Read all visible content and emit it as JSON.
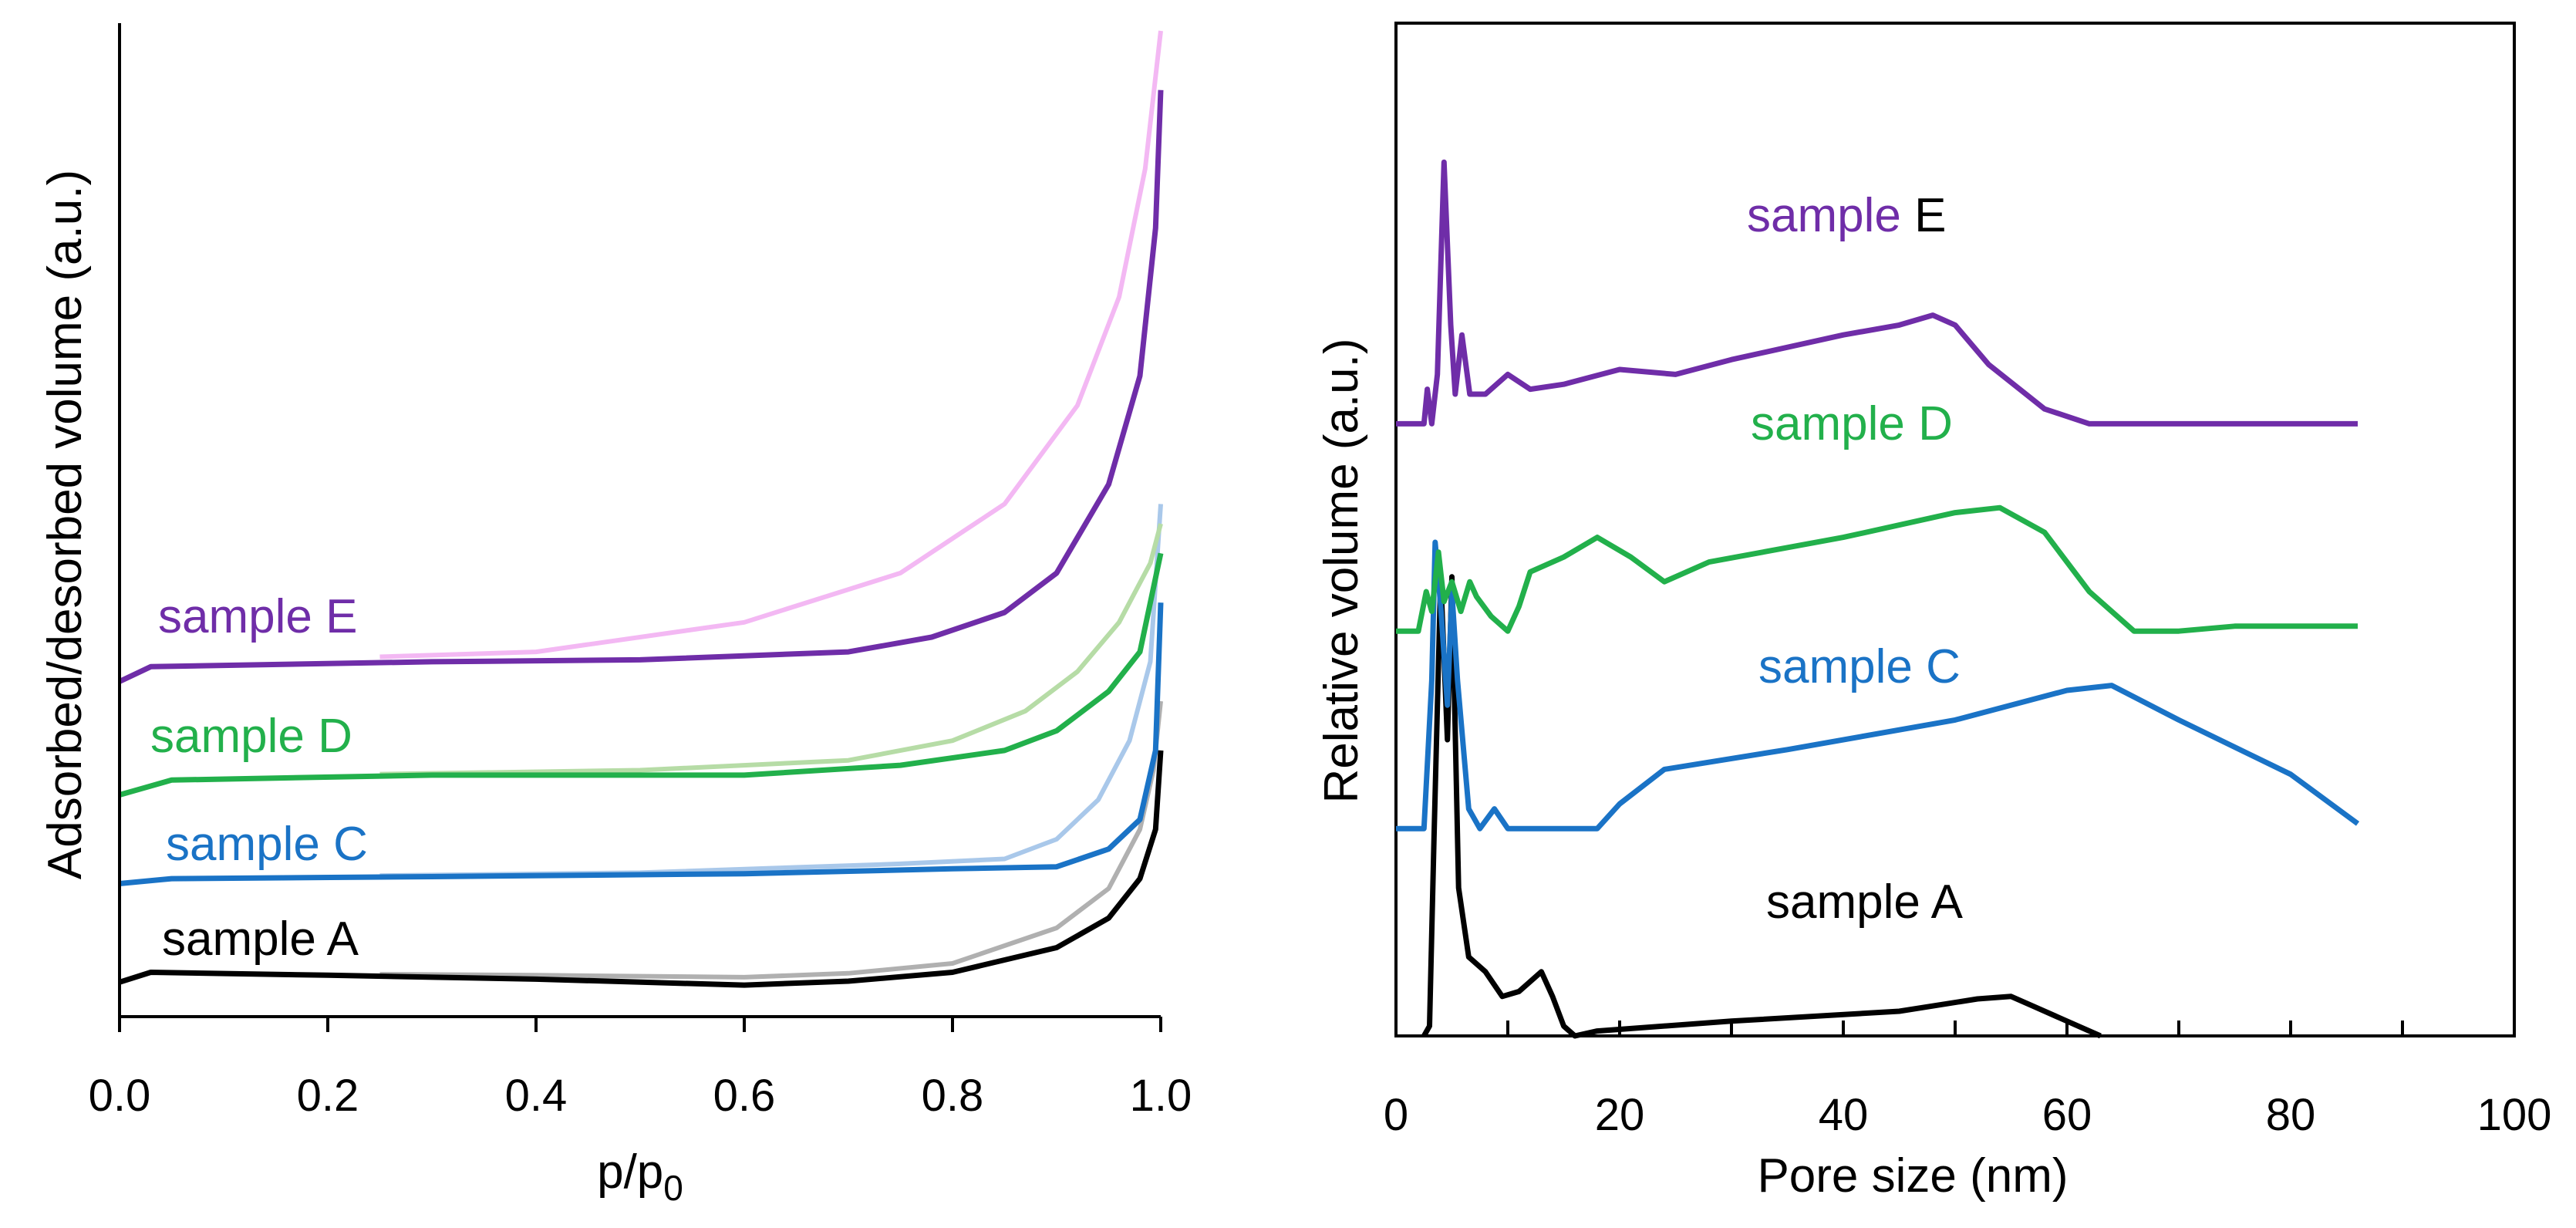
{
  "chart_data": [
    {
      "type": "line",
      "xlabel": "p/p",
      "xlabel_sub": "0",
      "ylabel": "Adsorbed/desorbed volume (a.u.)",
      "xlim": [
        0.0,
        1.0
      ],
      "xticks": [
        "0.0",
        "0.2",
        "0.4",
        "0.6",
        "0.8",
        "1.0"
      ],
      "yticks": [],
      "grid": false,
      "series": [
        {
          "name": "sample A",
          "color": "#000000",
          "desorption_color": "#b0b0b0",
          "baseline": 0.035,
          "adsorption": [
            [
              0.0,
              0.035
            ],
            [
              0.03,
              0.045
            ],
            [
              0.2,
              0.042
            ],
            [
              0.4,
              0.038
            ],
            [
              0.6,
              0.032
            ],
            [
              0.7,
              0.036
            ],
            [
              0.8,
              0.045
            ],
            [
              0.9,
              0.07
            ],
            [
              0.95,
              0.1
            ],
            [
              0.98,
              0.14
            ],
            [
              0.995,
              0.19
            ],
            [
              1.0,
              0.27
            ]
          ],
          "desorption": [
            [
              0.25,
              0.043
            ],
            [
              0.4,
              0.042
            ],
            [
              0.6,
              0.04
            ],
            [
              0.7,
              0.044
            ],
            [
              0.8,
              0.054
            ],
            [
              0.9,
              0.09
            ],
            [
              0.95,
              0.13
            ],
            [
              0.98,
              0.19
            ],
            [
              0.993,
              0.25
            ],
            [
              1.0,
              0.32
            ]
          ]
        },
        {
          "name": "sample C",
          "color": "#1a73c6",
          "desorption_color": "#a9c8ea",
          "baseline": 0.135,
          "adsorption": [
            [
              0.0,
              0.135
            ],
            [
              0.05,
              0.14
            ],
            [
              0.3,
              0.142
            ],
            [
              0.6,
              0.145
            ],
            [
              0.8,
              0.15
            ],
            [
              0.9,
              0.152
            ],
            [
              0.95,
              0.17
            ],
            [
              0.98,
              0.2
            ],
            [
              0.995,
              0.27
            ],
            [
              1.0,
              0.42
            ]
          ],
          "desorption": [
            [
              0.25,
              0.143
            ],
            [
              0.5,
              0.146
            ],
            [
              0.75,
              0.155
            ],
            [
              0.85,
              0.16
            ],
            [
              0.9,
              0.18
            ],
            [
              0.94,
              0.22
            ],
            [
              0.97,
              0.28
            ],
            [
              0.99,
              0.36
            ],
            [
              1.0,
              0.52
            ]
          ]
        },
        {
          "name": "sample D",
          "color": "#22b04b",
          "desorption_color": "#b6dca6",
          "baseline": 0.225,
          "adsorption": [
            [
              0.0,
              0.225
            ],
            [
              0.05,
              0.24
            ],
            [
              0.3,
              0.245
            ],
            [
              0.6,
              0.245
            ],
            [
              0.75,
              0.255
            ],
            [
              0.85,
              0.27
            ],
            [
              0.9,
              0.29
            ],
            [
              0.95,
              0.33
            ],
            [
              0.98,
              0.37
            ],
            [
              1.0,
              0.47
            ]
          ],
          "desorption": [
            [
              0.25,
              0.246
            ],
            [
              0.5,
              0.25
            ],
            [
              0.7,
              0.26
            ],
            [
              0.8,
              0.28
            ],
            [
              0.87,
              0.31
            ],
            [
              0.92,
              0.35
            ],
            [
              0.96,
              0.4
            ],
            [
              0.99,
              0.46
            ],
            [
              1.0,
              0.5
            ]
          ]
        },
        {
          "name": "sample E",
          "color": "#6f2da8",
          "desorption_color": "#f3b8f3",
          "baseline": 0.34,
          "adsorption": [
            [
              0.0,
              0.34
            ],
            [
              0.03,
              0.355
            ],
            [
              0.3,
              0.36
            ],
            [
              0.5,
              0.362
            ],
            [
              0.7,
              0.37
            ],
            [
              0.78,
              0.385
            ],
            [
              0.85,
              0.41
            ],
            [
              0.9,
              0.45
            ],
            [
              0.95,
              0.54
            ],
            [
              0.98,
              0.65
            ],
            [
              0.995,
              0.8
            ],
            [
              1.0,
              0.94
            ]
          ],
          "desorption": [
            [
              0.25,
              0.365
            ],
            [
              0.4,
              0.37
            ],
            [
              0.6,
              0.4
            ],
            [
              0.75,
              0.45
            ],
            [
              0.85,
              0.52
            ],
            [
              0.92,
              0.62
            ],
            [
              0.96,
              0.73
            ],
            [
              0.985,
              0.86
            ],
            [
              1.0,
              1.0
            ]
          ]
        }
      ],
      "labels": [
        {
          "series": "sample E",
          "text": "sample E",
          "color": "#6f2da8"
        },
        {
          "series": "sample D",
          "text": "sample D",
          "color": "#22b04b"
        },
        {
          "series": "sample C",
          "text": "sample C",
          "color": "#1a73c6"
        },
        {
          "series": "sample A",
          "text": "sample A",
          "color": "#000000"
        }
      ]
    },
    {
      "type": "line",
      "xlabel": "Pore size (nm)",
      "ylabel": "Relative volume (a.u.)",
      "xlim": [
        0,
        100
      ],
      "xticks": [
        "0",
        "20",
        "40",
        "60",
        "80",
        "100"
      ],
      "yticks": [],
      "grid": false,
      "series": [
        {
          "name": "sample A",
          "color": "#000000",
          "offset": 0.0,
          "points": [
            [
              2.5,
              0.0
            ],
            [
              3.0,
              0.02
            ],
            [
              3.4,
              0.4
            ],
            [
              4.0,
              0.93
            ],
            [
              4.6,
              0.6
            ],
            [
              5.0,
              0.93
            ],
            [
              5.6,
              0.3
            ],
            [
              6.5,
              0.16
            ],
            [
              8.0,
              0.13
            ],
            [
              9.5,
              0.08
            ],
            [
              11,
              0.09
            ],
            [
              13,
              0.13
            ],
            [
              14,
              0.08
            ],
            [
              15,
              0.02
            ],
            [
              16,
              0.0
            ],
            [
              18,
              0.01
            ],
            [
              30,
              0.03
            ],
            [
              45,
              0.05
            ],
            [
              52,
              0.075
            ],
            [
              55,
              0.08
            ],
            [
              57,
              0.06
            ],
            [
              60,
              0.03
            ],
            [
              63,
              0.0
            ]
          ]
        },
        {
          "name": "sample C",
          "color": "#1a73c6",
          "offset": 0.42,
          "points": [
            [
              0,
              0.0
            ],
            [
              2.5,
              0.0
            ],
            [
              3.2,
              0.3
            ],
            [
              3.5,
              0.58
            ],
            [
              4.0,
              0.45
            ],
            [
              4.6,
              0.25
            ],
            [
              5.0,
              0.48
            ],
            [
              5.5,
              0.3
            ],
            [
              6.5,
              0.04
            ],
            [
              7.5,
              0.0
            ],
            [
              8.8,
              0.04
            ],
            [
              10,
              0.0
            ],
            [
              18,
              0.0
            ],
            [
              20,
              0.05
            ],
            [
              24,
              0.12
            ],
            [
              35,
              0.16
            ],
            [
              50,
              0.22
            ],
            [
              60,
              0.28
            ],
            [
              64,
              0.29
            ],
            [
              70,
              0.22
            ],
            [
              80,
              0.11
            ],
            [
              86,
              0.01
            ]
          ]
        },
        {
          "name": "sample D",
          "color": "#22b04b",
          "offset": 0.82,
          "points": [
            [
              0,
              0.0
            ],
            [
              2,
              0.0
            ],
            [
              2.7,
              0.08
            ],
            [
              3.2,
              0.04
            ],
            [
              3.8,
              0.16
            ],
            [
              4.3,
              0.06
            ],
            [
              5.0,
              0.1
            ],
            [
              5.8,
              0.04
            ],
            [
              6.6,
              0.1
            ],
            [
              7.2,
              0.07
            ],
            [
              8.5,
              0.03
            ],
            [
              10,
              0.0
            ],
            [
              11,
              0.05
            ],
            [
              12,
              0.12
            ],
            [
              15,
              0.15
            ],
            [
              18,
              0.19
            ],
            [
              21,
              0.15
            ],
            [
              24,
              0.1
            ],
            [
              28,
              0.14
            ],
            [
              40,
              0.19
            ],
            [
              50,
              0.24
            ],
            [
              54,
              0.25
            ],
            [
              58,
              0.2
            ],
            [
              62,
              0.08
            ],
            [
              66,
              0.0
            ],
            [
              70,
              0.0
            ],
            [
              75,
              0.01
            ],
            [
              86,
              0.01
            ]
          ]
        },
        {
          "name": "sample E",
          "color": "#6f2da8",
          "offset": 1.24,
          "points": [
            [
              0,
              0.0
            ],
            [
              2.5,
              0.0
            ],
            [
              2.8,
              0.07
            ],
            [
              3.2,
              0.0
            ],
            [
              3.7,
              0.1
            ],
            [
              4.3,
              0.53
            ],
            [
              4.9,
              0.2
            ],
            [
              5.3,
              0.06
            ],
            [
              5.9,
              0.18
            ],
            [
              6.6,
              0.06
            ],
            [
              8,
              0.06
            ],
            [
              10,
              0.1
            ],
            [
              12,
              0.07
            ],
            [
              15,
              0.08
            ],
            [
              20,
              0.11
            ],
            [
              25,
              0.1
            ],
            [
              30,
              0.13
            ],
            [
              40,
              0.18
            ],
            [
              45,
              0.2
            ],
            [
              48,
              0.22
            ],
            [
              50,
              0.2
            ],
            [
              53,
              0.12
            ],
            [
              58,
              0.03
            ],
            [
              62,
              0.0
            ],
            [
              70,
              0.0
            ],
            [
              86,
              0.0
            ]
          ]
        }
      ],
      "labels": [
        {
          "series": "sample E",
          "text_colored": "sample ",
          "text_tail": "E",
          "color": "#6f2da8",
          "tail_color": "#000000"
        },
        {
          "series": "sample D",
          "text_colored": "sample D",
          "text_tail": "",
          "color": "#22b04b",
          "tail_color": "#22b04b"
        },
        {
          "series": "sample C",
          "text_colored": "sample C",
          "text_tail": "",
          "color": "#1a73c6",
          "tail_color": "#1a73c6"
        },
        {
          "series": "sample A",
          "text_colored": "sample A",
          "text_tail": "",
          "color": "#000000",
          "tail_color": "#000000"
        }
      ]
    }
  ]
}
